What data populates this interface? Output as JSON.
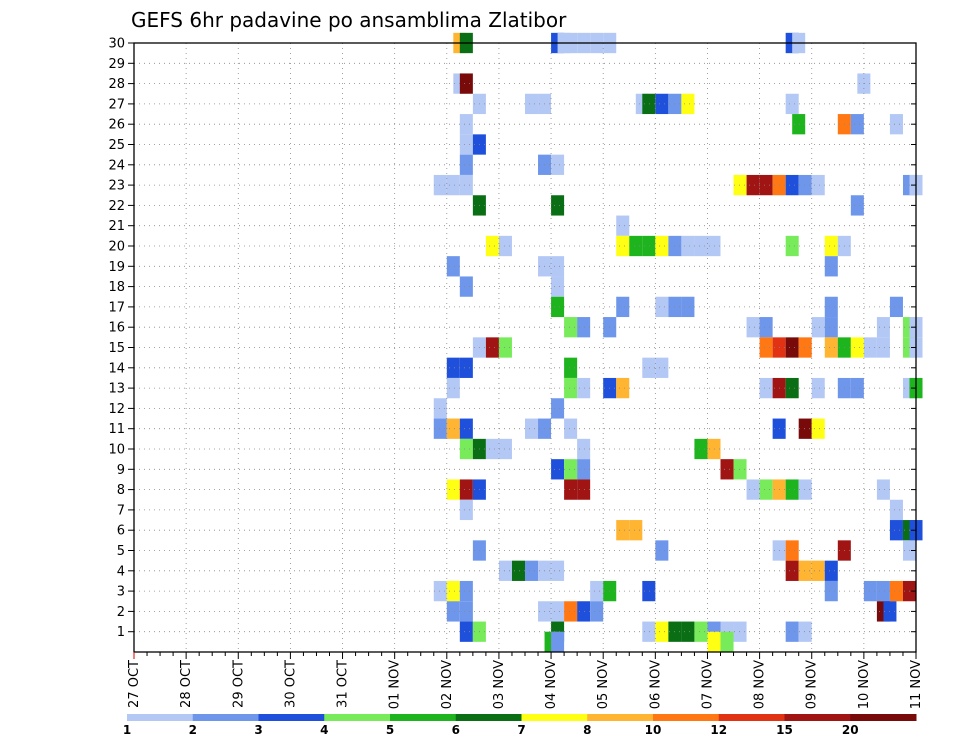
{
  "chart_data": {
    "type": "heatmap",
    "title": "GEFS 6hr padavine po ansamblima Zlatibor",
    "xlabel": "",
    "ylabel": "",
    "x_tick_labels": [
      "27 OCT",
      "28 OCT",
      "29 OCT",
      "30 OCT",
      "31 OCT",
      "01 NOV",
      "02 NOV",
      "03 NOV",
      "04 NOV",
      "05 NOV",
      "06 NOV",
      "07 NOV",
      "08 NOV",
      "09 NOV",
      "10 NOV",
      "11 NOV"
    ],
    "y_tick_labels": [
      "1",
      "2",
      "3",
      "4",
      "5",
      "6",
      "7",
      "8",
      "9",
      "10",
      "11",
      "12",
      "13",
      "14",
      "15",
      "16",
      "17",
      "18",
      "19",
      "20",
      "21",
      "22",
      "23",
      "24",
      "25",
      "26",
      "27",
      "28",
      "29",
      "30"
    ],
    "x_step_unit": "6hr steps from 27 OCT 00Z",
    "xlim": [
      0,
      60
    ],
    "ylim": [
      0,
      30
    ],
    "grid": true,
    "colorbar": {
      "tick_labels": [
        "1",
        "2",
        "3",
        "4",
        "5",
        "6",
        "7",
        "8",
        "10",
        "12",
        "15",
        "20"
      ],
      "colors": [
        "#b4c8f5",
        "#6e96eb",
        "#1e50dc",
        "#78eb5a",
        "#1eb41e",
        "#0a6e14",
        "#ffff14",
        "#ffb432",
        "#ff7814",
        "#e13214",
        "#a01414",
        "#780a0a"
      ]
    },
    "cells": [
      {
        "m": 30,
        "s": [
          [
            24.5,
            8
          ],
          [
            25,
            6
          ],
          [
            32,
            3
          ],
          [
            32.5,
            1
          ],
          [
            33,
            1
          ],
          [
            34,
            1
          ],
          [
            35,
            1
          ],
          [
            36,
            1
          ],
          [
            50,
            3
          ],
          [
            50.5,
            1
          ]
        ]
      },
      {
        "m": 28,
        "s": [
          [
            24.5,
            1
          ],
          [
            25,
            12
          ],
          [
            55.5,
            1
          ]
        ]
      },
      {
        "m": 27,
        "s": [
          [
            26,
            1
          ],
          [
            30,
            1
          ],
          [
            31,
            1
          ],
          [
            38.5,
            1
          ],
          [
            39,
            6
          ],
          [
            40,
            3
          ],
          [
            41,
            2
          ],
          [
            42,
            7
          ],
          [
            50,
            1
          ]
        ]
      },
      {
        "m": 26,
        "s": [
          [
            25,
            1
          ],
          [
            50.5,
            5
          ],
          [
            54,
            9
          ],
          [
            55,
            2
          ],
          [
            58,
            1
          ]
        ]
      },
      {
        "m": 25,
        "s": [
          [
            25,
            1
          ],
          [
            26,
            3
          ]
        ]
      },
      {
        "m": 24,
        "s": [
          [
            25,
            2
          ],
          [
            31,
            2
          ],
          [
            32,
            1
          ]
        ]
      },
      {
        "m": 23,
        "s": [
          [
            23,
            1
          ],
          [
            24,
            1
          ],
          [
            25,
            1
          ],
          [
            46,
            7
          ],
          [
            47,
            11
          ],
          [
            48,
            11
          ],
          [
            49,
            9
          ],
          [
            50,
            3
          ],
          [
            51,
            2
          ],
          [
            52,
            1
          ],
          [
            59,
            2
          ],
          [
            59.5,
            1
          ]
        ]
      },
      {
        "m": 22,
        "s": [
          [
            26,
            6
          ],
          [
            32,
            6
          ],
          [
            55,
            2
          ]
        ]
      },
      {
        "m": 21,
        "s": [
          [
            37,
            1
          ]
        ]
      },
      {
        "m": 20,
        "s": [
          [
            27,
            7
          ],
          [
            28,
            1
          ],
          [
            37,
            7
          ],
          [
            38,
            5
          ],
          [
            39,
            5
          ],
          [
            40,
            7
          ],
          [
            41,
            2
          ],
          [
            42,
            1
          ],
          [
            43,
            1
          ],
          [
            44,
            1
          ],
          [
            50,
            4
          ],
          [
            53,
            7
          ],
          [
            54,
            1
          ]
        ]
      },
      {
        "m": 19,
        "s": [
          [
            24,
            2
          ],
          [
            31,
            1
          ],
          [
            32,
            1
          ],
          [
            53,
            2
          ]
        ]
      },
      {
        "m": 18,
        "s": [
          [
            25,
            2
          ],
          [
            32,
            1
          ]
        ]
      },
      {
        "m": 17,
        "s": [
          [
            32,
            5
          ],
          [
            37,
            2
          ],
          [
            40,
            1
          ],
          [
            41,
            2
          ],
          [
            42,
            2
          ],
          [
            53,
            2
          ],
          [
            58,
            2
          ]
        ]
      },
      {
        "m": 16,
        "s": [
          [
            33,
            4
          ],
          [
            34,
            2
          ],
          [
            36,
            2
          ],
          [
            47,
            1
          ],
          [
            48,
            2
          ],
          [
            52,
            1
          ],
          [
            53,
            2
          ],
          [
            57,
            1
          ],
          [
            59,
            4
          ],
          [
            59.5,
            1
          ]
        ]
      },
      {
        "m": 15,
        "s": [
          [
            26,
            1
          ],
          [
            27,
            11
          ],
          [
            28,
            4
          ],
          [
            48,
            9
          ],
          [
            49,
            10
          ],
          [
            50,
            12
          ],
          [
            51,
            9
          ],
          [
            53,
            8
          ],
          [
            54,
            5
          ],
          [
            55,
            7
          ],
          [
            56,
            1
          ],
          [
            57,
            1
          ],
          [
            59,
            4
          ],
          [
            59.5,
            1
          ]
        ]
      },
      {
        "m": 14,
        "s": [
          [
            24,
            3
          ],
          [
            25,
            3
          ],
          [
            33,
            5
          ],
          [
            39,
            1
          ],
          [
            40,
            1
          ]
        ]
      },
      {
        "m": 13,
        "s": [
          [
            24,
            1
          ],
          [
            33,
            4
          ],
          [
            34,
            1
          ],
          [
            36,
            3
          ],
          [
            37,
            8
          ],
          [
            48,
            1
          ],
          [
            49,
            11
          ],
          [
            50,
            6
          ],
          [
            52,
            1
          ],
          [
            54,
            2
          ],
          [
            55,
            2
          ],
          [
            59,
            1
          ],
          [
            59.5,
            5
          ]
        ]
      },
      {
        "m": 12,
        "s": [
          [
            23,
            1
          ],
          [
            32,
            2
          ]
        ]
      },
      {
        "m": 11,
        "s": [
          [
            23,
            2
          ],
          [
            24,
            8
          ],
          [
            25,
            3
          ],
          [
            30,
            1
          ],
          [
            31,
            2
          ],
          [
            33,
            1
          ],
          [
            49,
            3
          ],
          [
            51,
            12
          ],
          [
            52,
            7
          ]
        ]
      },
      {
        "m": 10,
        "s": [
          [
            25,
            4
          ],
          [
            26,
            6
          ],
          [
            27,
            1
          ],
          [
            28,
            1
          ],
          [
            34,
            1
          ],
          [
            43,
            5
          ],
          [
            44,
            8
          ]
        ]
      },
      {
        "m": 9,
        "s": [
          [
            32,
            3
          ],
          [
            33,
            4
          ],
          [
            34,
            2
          ],
          [
            45,
            11
          ],
          [
            46,
            4
          ]
        ]
      },
      {
        "m": 8,
        "s": [
          [
            24,
            7
          ],
          [
            25,
            11
          ],
          [
            26,
            3
          ],
          [
            33,
            11
          ],
          [
            34,
            11
          ],
          [
            47,
            1
          ],
          [
            48,
            4
          ],
          [
            49,
            8
          ],
          [
            50,
            5
          ],
          [
            51,
            1
          ],
          [
            57,
            1
          ]
        ]
      },
      {
        "m": 7,
        "s": [
          [
            25,
            1
          ],
          [
            58,
            1
          ]
        ]
      },
      {
        "m": 6,
        "s": [
          [
            37,
            8
          ],
          [
            38,
            8
          ],
          [
            58,
            3
          ],
          [
            59,
            6
          ],
          [
            59.5,
            3
          ]
        ]
      },
      {
        "m": 5,
        "s": [
          [
            26,
            2
          ],
          [
            40,
            2
          ],
          [
            49,
            1
          ],
          [
            50,
            9
          ],
          [
            54,
            11
          ],
          [
            59,
            1
          ]
        ]
      },
      {
        "m": 4,
        "s": [
          [
            28,
            1
          ],
          [
            29,
            6
          ],
          [
            30,
            2
          ],
          [
            31,
            1
          ],
          [
            32,
            1
          ],
          [
            50,
            11
          ],
          [
            51,
            8
          ],
          [
            52,
            8
          ],
          [
            53,
            3
          ]
        ]
      },
      {
        "m": 3,
        "s": [
          [
            23,
            1
          ],
          [
            24,
            7
          ],
          [
            25,
            2
          ],
          [
            35,
            1
          ],
          [
            36,
            5
          ],
          [
            39,
            3
          ],
          [
            53,
            2
          ],
          [
            56,
            2
          ],
          [
            57,
            2
          ],
          [
            58,
            9
          ],
          [
            59,
            11
          ]
        ]
      },
      {
        "m": 2,
        "s": [
          [
            24,
            2
          ],
          [
            25,
            2
          ],
          [
            31,
            1
          ],
          [
            32,
            1
          ],
          [
            33,
            9
          ],
          [
            34,
            3
          ],
          [
            35,
            2
          ],
          [
            57,
            12
          ],
          [
            57.5,
            3
          ]
        ]
      },
      {
        "m": 1,
        "s": [
          [
            25,
            3
          ],
          [
            26,
            4
          ],
          [
            32,
            6
          ],
          [
            39,
            1
          ],
          [
            40,
            7
          ],
          [
            41,
            6
          ],
          [
            42,
            6
          ],
          [
            43,
            4
          ],
          [
            44,
            2
          ],
          [
            45,
            1
          ],
          [
            46,
            1
          ],
          [
            50,
            2
          ],
          [
            51,
            1
          ]
        ]
      },
      {
        "m": 0.5,
        "s": [
          [
            31.5,
            5
          ],
          [
            32,
            2
          ],
          [
            44,
            7
          ],
          [
            45,
            4
          ]
        ]
      }
    ]
  }
}
